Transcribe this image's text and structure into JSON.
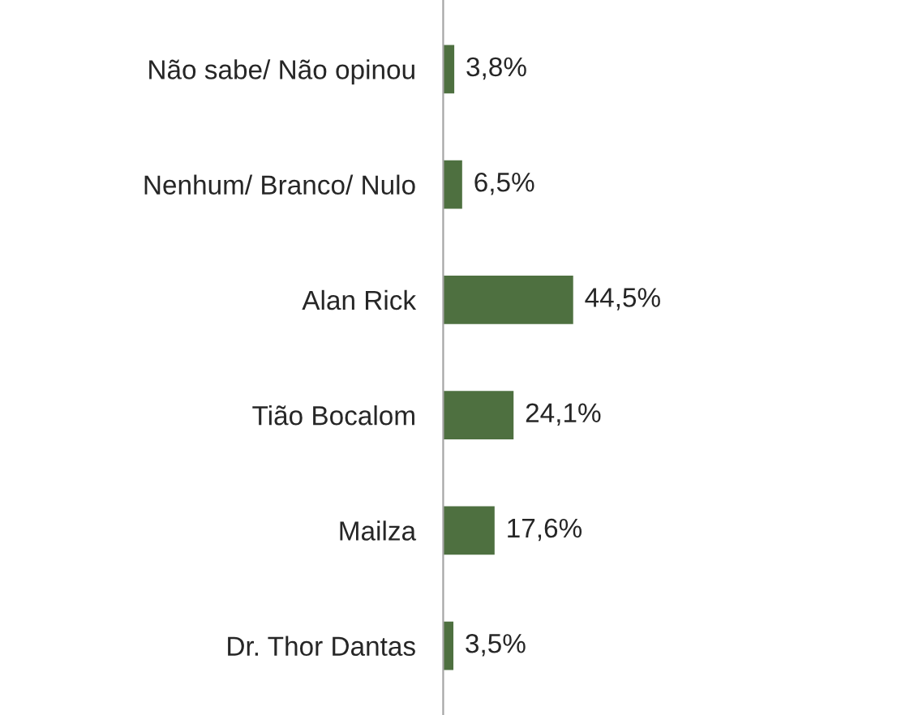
{
  "chart_data": {
    "type": "bar",
    "orientation": "horizontal",
    "categories": [
      "Não sabe/ Não opinou",
      "Nenhum/ Branco/ Nulo",
      "Alan Rick",
      "Tião Bocalom",
      "Mailza",
      "Dr. Thor Dantas"
    ],
    "values": [
      3.8,
      6.5,
      44.5,
      24.1,
      17.6,
      3.5
    ],
    "value_labels": [
      "3,8%",
      "6,5%",
      "44,5%",
      "24,1%",
      "17,6%",
      "3,5%"
    ],
    "color": "#4e7040",
    "grid": false,
    "legend": false,
    "tick_labels": "y"
  }
}
